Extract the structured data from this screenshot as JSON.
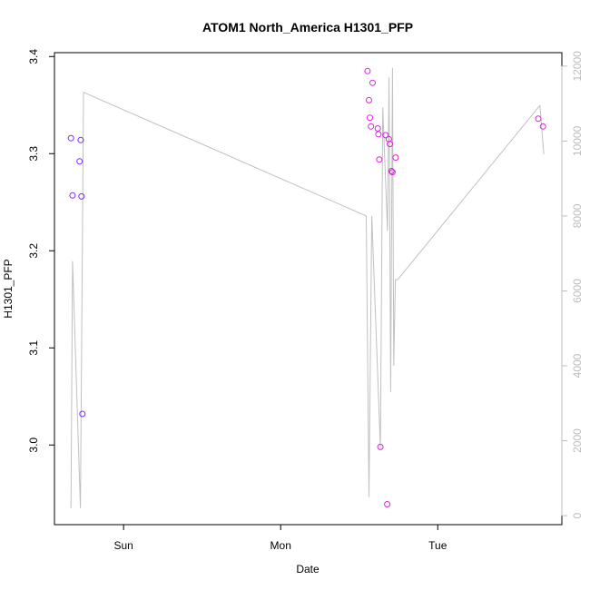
{
  "chart_data": {
    "type": "scatter",
    "title": "ATOM1 North_America H1301_PFP",
    "xlabel": "Date",
    "ylabel": "H1301_PFP",
    "x_ticks": [
      {
        "label": "Sun",
        "value": 1.0
      },
      {
        "label": "Mon",
        "value": 2.0
      },
      {
        "label": "Tue",
        "value": 3.0
      }
    ],
    "xlim": [
      0.56,
      3.79
    ],
    "left_axis": {
      "ylim": [
        2.918,
        3.404
      ],
      "ticks": [
        3.0,
        3.1,
        3.2,
        3.3,
        3.4
      ],
      "tick_labels": [
        "3.0",
        "3.1",
        "3.2",
        "3.3",
        "3.4"
      ]
    },
    "right_axis": {
      "ylim": [
        -240,
        12360
      ],
      "ticks": [
        0,
        2000,
        4000,
        6000,
        8000,
        10000,
        12000
      ],
      "tick_labels": [
        "0",
        "2000",
        "4000",
        "6000",
        "8000",
        "10000",
        "12000"
      ],
      "color": "#bdbdbd"
    },
    "colors": {
      "points_early": "#7b2cf0",
      "points_late": "#e020e0",
      "line": "#c0c0c0"
    },
    "points": [
      {
        "x": 0.665,
        "y": 3.316
      },
      {
        "x": 0.675,
        "y": 3.257
      },
      {
        "x": 0.72,
        "y": 3.292
      },
      {
        "x": 0.727,
        "y": 3.314
      },
      {
        "x": 0.732,
        "y": 3.256
      },
      {
        "x": 0.738,
        "y": 3.032
      },
      {
        "x": 2.553,
        "y": 3.385
      },
      {
        "x": 2.562,
        "y": 3.355
      },
      {
        "x": 2.568,
        "y": 3.337
      },
      {
        "x": 2.575,
        "y": 3.328
      },
      {
        "x": 2.585,
        "y": 3.373
      },
      {
        "x": 2.618,
        "y": 3.326
      },
      {
        "x": 2.622,
        "y": 3.32
      },
      {
        "x": 2.628,
        "y": 3.294
      },
      {
        "x": 2.635,
        "y": 2.998
      },
      {
        "x": 2.668,
        "y": 3.319
      },
      {
        "x": 2.678,
        "y": 2.939
      },
      {
        "x": 2.688,
        "y": 3.315
      },
      {
        "x": 2.695,
        "y": 3.31
      },
      {
        "x": 2.705,
        "y": 3.282
      },
      {
        "x": 2.712,
        "y": 3.281
      },
      {
        "x": 2.732,
        "y": 3.296
      },
      {
        "x": 3.64,
        "y": 3.336
      },
      {
        "x": 3.67,
        "y": 3.328
      }
    ],
    "line": {
      "x": [
        0.665,
        0.675,
        0.725,
        0.745,
        2.545,
        2.562,
        2.58,
        2.635,
        2.65,
        2.68,
        2.69,
        2.7,
        2.712,
        2.72,
        2.73,
        2.745,
        3.65,
        3.675
      ],
      "y": [
        200,
        6800,
        200,
        11300,
        8000,
        500,
        8000,
        1800,
        10900,
        7600,
        11700,
        3300,
        11950,
        4000,
        6300,
        6300,
        10950,
        9650
      ]
    }
  }
}
